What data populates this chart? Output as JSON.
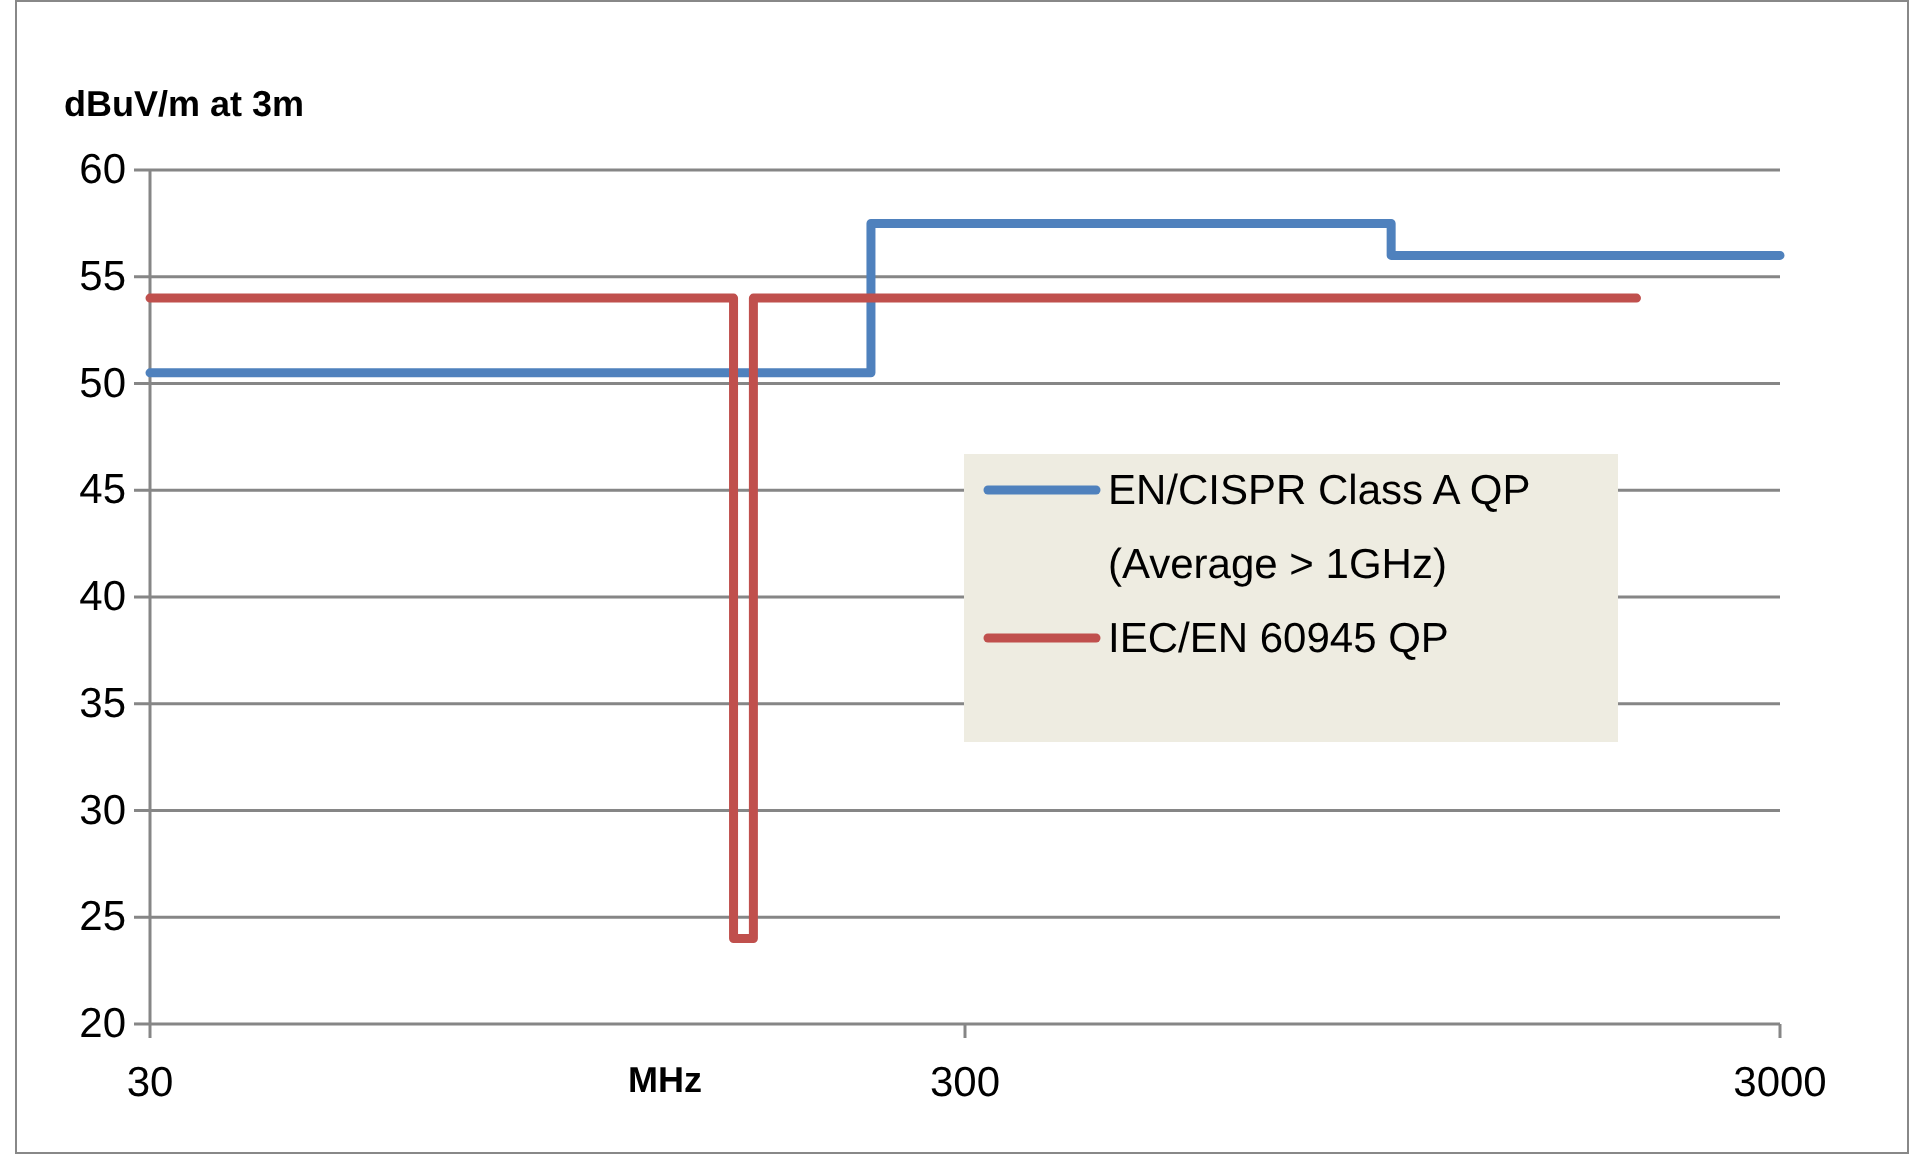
{
  "chart_data": {
    "type": "step",
    "xlabel": "MHz",
    "ylabel": "dBuV/m at 3m",
    "log": "x",
    "xlim": [
      30,
      3000
    ],
    "xticks": [
      30,
      300,
      3000
    ],
    "ylim": [
      20,
      60
    ],
    "yticks": [
      20,
      25,
      30,
      35,
      40,
      45,
      50,
      55,
      60
    ],
    "grid": "y",
    "legend": "right",
    "series": [
      {
        "name": "EN/CISPR Class A QP (Average > 1GHz)",
        "color": "#4f81bd",
        "x": [
          30,
          230,
          1000,
          3000
        ],
        "values": [
          50.5,
          57.5,
          56,
          56
        ]
      },
      {
        "name": "IEC/EN 60945  QP",
        "color": "#c0504d",
        "x": [
          30,
          156,
          165,
          2000
        ],
        "values": [
          54,
          24,
          54,
          54
        ]
      }
    ]
  }
}
